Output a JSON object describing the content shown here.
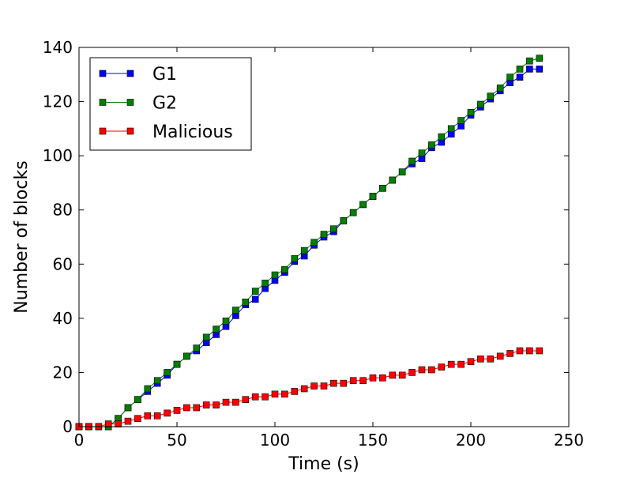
{
  "chart_data": {
    "type": "line",
    "title": "",
    "xlabel": "Time (s)",
    "ylabel": "Number of blocks",
    "xlim": [
      0,
      250
    ],
    "ylim": [
      0,
      140
    ],
    "xticks": [
      0,
      50,
      100,
      150,
      200,
      250
    ],
    "yticks": [
      0,
      20,
      40,
      60,
      80,
      100,
      120,
      140
    ],
    "grid": false,
    "legend_position": "top-left",
    "x": [
      0,
      5,
      10,
      15,
      20,
      25,
      30,
      35,
      40,
      45,
      50,
      55,
      60,
      65,
      70,
      75,
      80,
      85,
      90,
      95,
      100,
      105,
      110,
      115,
      120,
      125,
      130,
      135,
      140,
      145,
      150,
      155,
      160,
      165,
      170,
      175,
      180,
      185,
      190,
      195,
      200,
      205,
      210,
      215,
      220,
      225,
      230,
      235
    ],
    "series": [
      {
        "name": "G1",
        "color": "#0000ff",
        "values": [
          0,
          0,
          0,
          0,
          3,
          7,
          10,
          13,
          16,
          19,
          23,
          26,
          28,
          31,
          34,
          37,
          41,
          45,
          47,
          51,
          54,
          57,
          61,
          63,
          67,
          70,
          72,
          76,
          79,
          82,
          85,
          88,
          91,
          94,
          97,
          99,
          103,
          105,
          108,
          111,
          115,
          118,
          121,
          124,
          127,
          129,
          132,
          132
        ]
      },
      {
        "name": "G2",
        "color": "#008000",
        "values": [
          0,
          0,
          0,
          0,
          3,
          7,
          10,
          14,
          17,
          20,
          23,
          26,
          29,
          33,
          36,
          39,
          43,
          46,
          50,
          53,
          56,
          58,
          62,
          65,
          68,
          71,
          73,
          76,
          79,
          82,
          85,
          88,
          91,
          94,
          98,
          101,
          104,
          107,
          110,
          113,
          116,
          119,
          122,
          125,
          129,
          132,
          135,
          136
        ]
      },
      {
        "name": "Malicious",
        "color": "#ff0000",
        "values": [
          0,
          0,
          0,
          1,
          1,
          2,
          3,
          4,
          4,
          5,
          6,
          7,
          7,
          8,
          8,
          9,
          9,
          10,
          11,
          11,
          12,
          12,
          13,
          14,
          15,
          15,
          16,
          16,
          17,
          17,
          18,
          18,
          19,
          19,
          20,
          21,
          21,
          22,
          23,
          23,
          24,
          25,
          25,
          26,
          27,
          28,
          28,
          28
        ]
      }
    ]
  }
}
